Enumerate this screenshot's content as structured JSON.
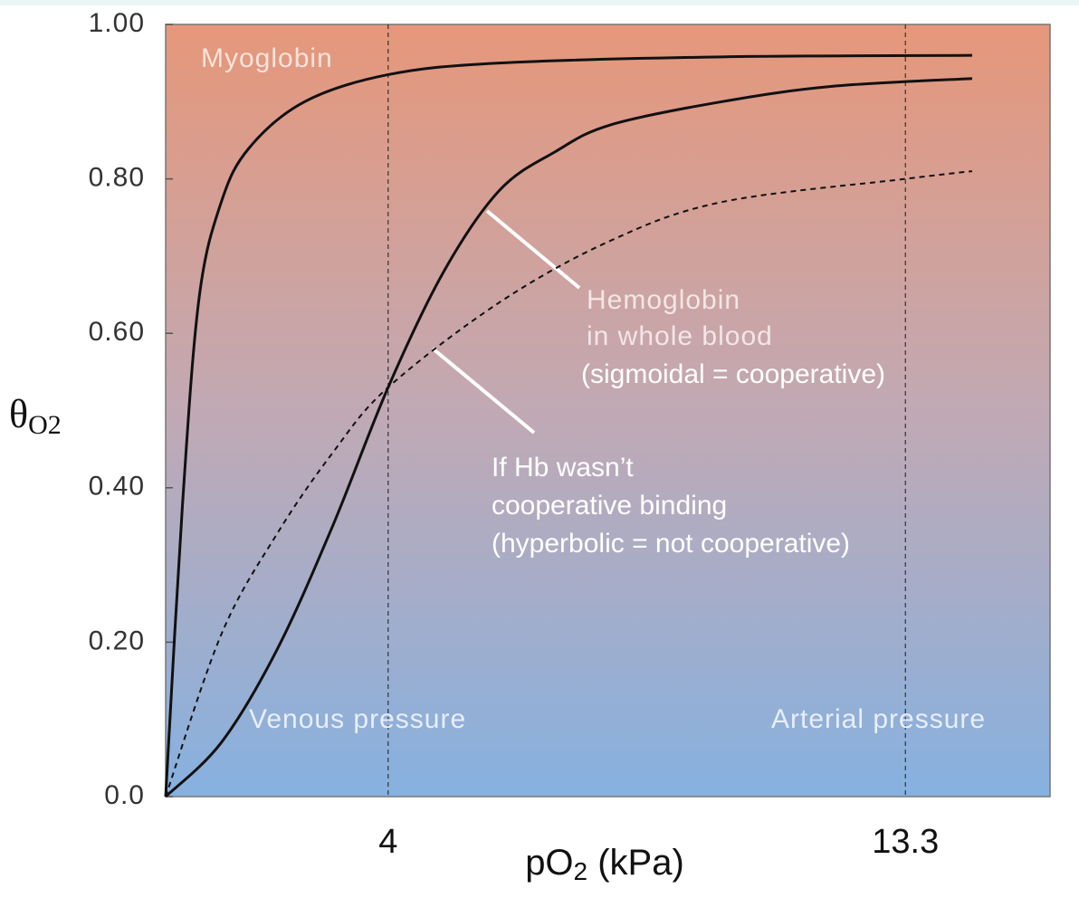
{
  "chart_data": {
    "type": "line",
    "y_label": {
      "main": "θ",
      "sub": "O2"
    },
    "x_label": {
      "main": "pO",
      "sub": "2",
      "rest": " (kPa)"
    },
    "xlim": [
      0,
      15.9
    ],
    "ylim": [
      0,
      1
    ],
    "xticks": [
      4,
      13.3
    ],
    "yticks": [
      {
        "value": 0,
        "label": "0.0"
      },
      {
        "value": 0.2,
        "label": "0.20"
      },
      {
        "value": 0.4,
        "label": "0.40"
      },
      {
        "value": 0.6,
        "label": "0.60"
      },
      {
        "value": 0.8,
        "label": "0.80"
      },
      {
        "value": 1,
        "label": "1.00"
      }
    ],
    "series": [
      {
        "color": "#111111",
        "dashed": false,
        "x": [
          0,
          0.3,
          0.6,
          1,
          1.5,
          2.5,
          4,
          6,
          10,
          14.5
        ],
        "values": [
          0,
          0.375,
          0.645,
          0.77,
          0.84,
          0.9,
          0.935,
          0.95,
          0.958,
          0.96
        ]
      },
      {
        "color": "#111111",
        "dashed": false,
        "x": [
          0,
          1,
          2,
          3,
          4,
          5,
          6,
          7,
          8,
          10,
          12,
          14.5
        ],
        "values": [
          0,
          0.07,
          0.19,
          0.35,
          0.53,
          0.68,
          0.785,
          0.835,
          0.87,
          0.9,
          0.92,
          0.93
        ]
      },
      {
        "color": "#111111",
        "dashed": true,
        "x": [
          0,
          1,
          2,
          3,
          4,
          6,
          8,
          10,
          13.3,
          14.5
        ],
        "values": [
          0,
          0.21,
          0.34,
          0.445,
          0.53,
          0.64,
          0.72,
          0.77,
          0.8,
          0.81
        ]
      }
    ],
    "annotations": [
      {
        "lines": [
          "Myoglobin"
        ],
        "color": "#f6e4dc"
      },
      {
        "lines": [
          "Hemoglobin",
          "in whole blood"
        ],
        "color": "#f3e6e6"
      },
      {
        "lines": [
          "(sigmoidal = cooperative)"
        ],
        "color": "#ffffff"
      },
      {
        "lines": [
          "If Hb wasn’t",
          "cooperative binding",
          "(hyperbolic = not cooperative)"
        ],
        "color": "#ffffff"
      },
      {
        "lines": [
          "Venous pressure"
        ],
        "color": "#e8eef8"
      },
      {
        "lines": [
          "Arterial pressure"
        ],
        "color": "#e8eef8"
      }
    ]
  }
}
